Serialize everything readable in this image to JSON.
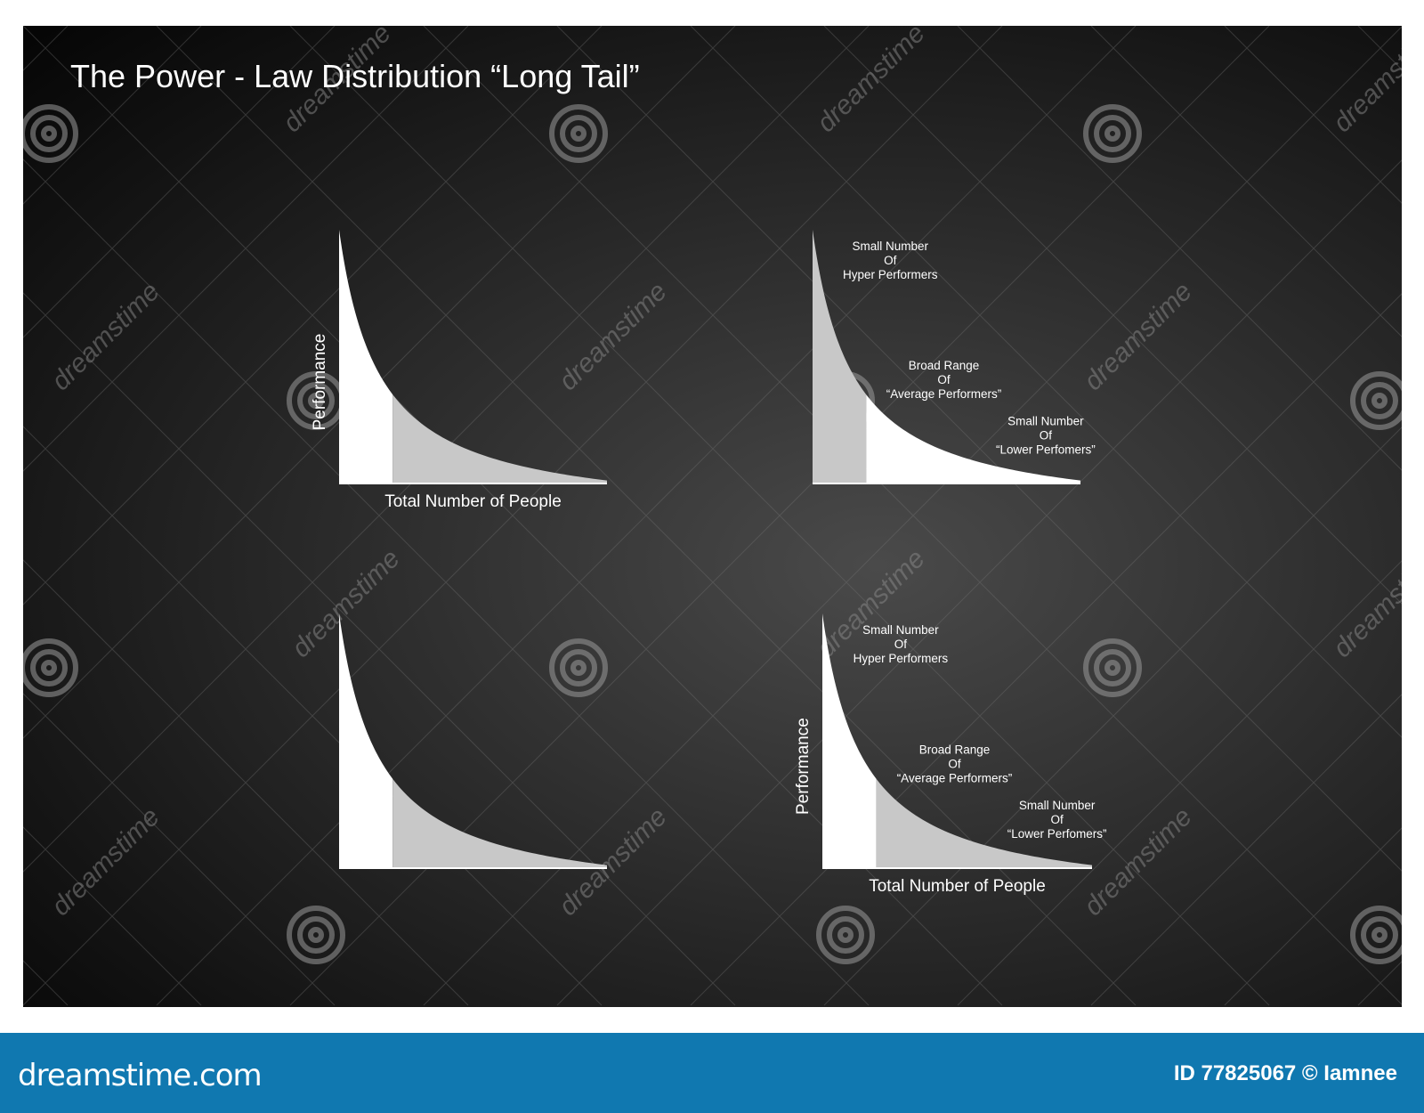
{
  "title": "The Power - Law Distribution “Long Tail”",
  "watermark": {
    "text": "dreamstime",
    "icon": "spiral-icon"
  },
  "colors": {
    "board": "#2e2e2e",
    "curve_white": "#ffffff",
    "curve_grey": "#c8c8c8",
    "footer": "#1078b0"
  },
  "charts": [
    {
      "ylabel": "Performance",
      "xlabel": "Total Number of People",
      "head_shade": "white",
      "tail_shade": "grey",
      "annotations": []
    },
    {
      "ylabel": "",
      "xlabel": "",
      "head_shade": "grey",
      "tail_shade": "white",
      "annotations": [
        [
          "Small Number",
          "Of",
          "Hyper Performers"
        ],
        [
          "Broad Range",
          "Of",
          "“Average Performers”"
        ],
        [
          "Small Number",
          "Of",
          "“Lower Perfomers”"
        ]
      ]
    },
    {
      "ylabel": "",
      "xlabel": "",
      "head_shade": "white",
      "tail_shade": "grey",
      "annotations": []
    },
    {
      "ylabel": "Performance",
      "xlabel": "Total Number of People",
      "head_shade": "white",
      "tail_shade": "grey",
      "annotations": [
        [
          "Small Number",
          "Of",
          "Hyper Performers"
        ],
        [
          "Broad Range",
          "Of",
          "“Average Performers”"
        ],
        [
          "Small Number",
          "Of",
          "“Lower Perfomers”"
        ]
      ]
    }
  ],
  "footer": {
    "logo": "dreamstime.com",
    "credit": "ID 77825067 © Iamnee"
  }
}
